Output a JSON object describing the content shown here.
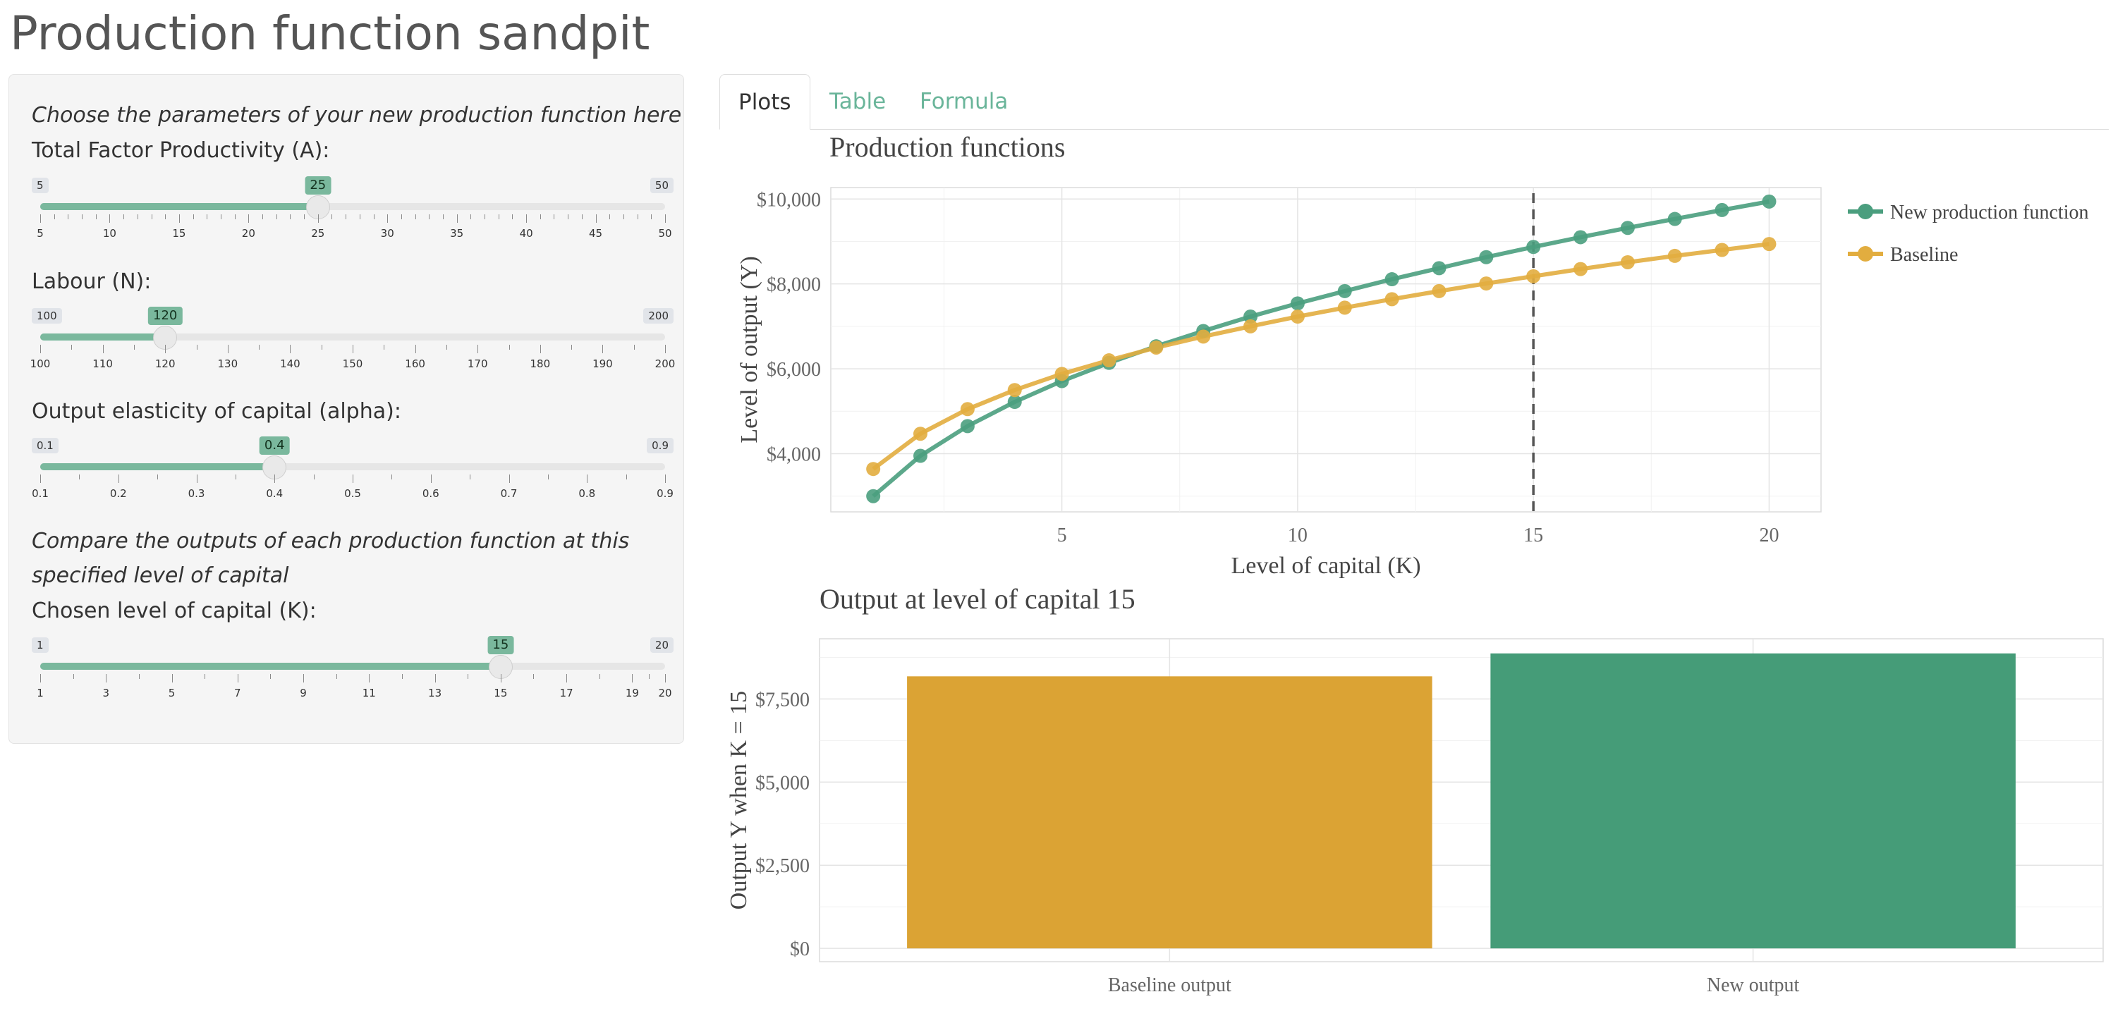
{
  "page": {
    "title": "Production function sandpit"
  },
  "sidebar": {
    "intro": "Choose the parameters of your new production function here",
    "compare_note_line1": "Compare the outputs of each production function at this",
    "compare_note_line2": "specified level of capital",
    "sliders": [
      {
        "label": "Total Factor Productivity (A):",
        "min": 5,
        "max": 50,
        "value": 25,
        "min_label": "5",
        "max_label": "50",
        "value_label": "25",
        "ticks": [
          "5",
          "10",
          "15",
          "20",
          "25",
          "30",
          "35",
          "40",
          "45",
          "50"
        ],
        "minor_per_major": 4
      },
      {
        "label": "Labour (N):",
        "min": 100,
        "max": 200,
        "value": 120,
        "min_label": "100",
        "max_label": "200",
        "value_label": "120",
        "ticks": [
          "100",
          "110",
          "120",
          "130",
          "140",
          "150",
          "160",
          "170",
          "180",
          "190",
          "200"
        ],
        "minor_per_major": 1
      },
      {
        "label": "Output elasticity of capital (alpha):",
        "min": 0.1,
        "max": 0.9,
        "value": 0.4,
        "min_label": "0.1",
        "max_label": "0.9",
        "value_label": "0.4",
        "ticks": [
          "0.1",
          "0.2",
          "0.3",
          "0.4",
          "0.5",
          "0.6",
          "0.7",
          "0.8",
          "0.9"
        ],
        "minor_per_major": 1
      },
      {
        "label": "Chosen level of capital (K):",
        "min": 1,
        "max": 20,
        "value": 15,
        "min_label": "1",
        "max_label": "20",
        "value_label": "15",
        "ticks": [
          "1",
          "3",
          "5",
          "7",
          "9",
          "11",
          "13",
          "15",
          "17",
          "19",
          "20"
        ],
        "minor_per_major": 1
      }
    ]
  },
  "tabs": [
    {
      "label": "Plots",
      "active": true
    },
    {
      "label": "Table",
      "active": false
    },
    {
      "label": "Formula",
      "active": false
    }
  ],
  "colors": {
    "new": "#4a9e7e",
    "new_bar": "#459c78",
    "baseline": "#e2ad3f",
    "baseline_bar": "#dba334",
    "accent": "#7ab89d",
    "tab_link": "#6ab59a"
  },
  "chart_data": [
    {
      "type": "line",
      "title": "Production functions",
      "xlabel": "Level of capital (K)",
      "ylabel": "Level of output (Y)",
      "x": [
        1,
        2,
        3,
        4,
        5,
        6,
        7,
        8,
        9,
        10,
        11,
        12,
        13,
        14,
        15,
        16,
        17,
        18,
        19,
        20
      ],
      "xticks": [
        "5",
        "10",
        "15",
        "20"
      ],
      "yticks": [
        "$4,000",
        "$6,000",
        "$8,000",
        "$10,000"
      ],
      "xlim": [
        0.1,
        21.1
      ],
      "ylim": [
        2630,
        10270
      ],
      "series": [
        {
          "name": "New production function",
          "values": [
            3000,
            3950,
            4650,
            5220,
            5710,
            6140,
            6530,
            6890,
            7230,
            7540,
            7830,
            8110,
            8370,
            8630,
            8870,
            9100,
            9320,
            9530,
            9740,
            9940
          ]
        },
        {
          "name": "Baseline",
          "values": [
            3640,
            4470,
            5050,
            5500,
            5880,
            6200,
            6500,
            6760,
            7000,
            7230,
            7440,
            7640,
            7830,
            8010,
            8180,
            8350,
            8510,
            8660,
            8800,
            8940
          ]
        }
      ],
      "reference_line_x": 15,
      "grid": true,
      "legend": "right"
    },
    {
      "type": "bar",
      "title": "Output at level of capital 15",
      "xlabel": "",
      "ylabel": "Output Y when K = 15",
      "categories": [
        "Baseline output",
        "New output"
      ],
      "values": [
        8180,
        8870
      ],
      "yticks": [
        "$0",
        "$2,500",
        "$5,000",
        "$7,500"
      ],
      "ylim": [
        -400,
        9310
      ],
      "grid": true
    }
  ]
}
